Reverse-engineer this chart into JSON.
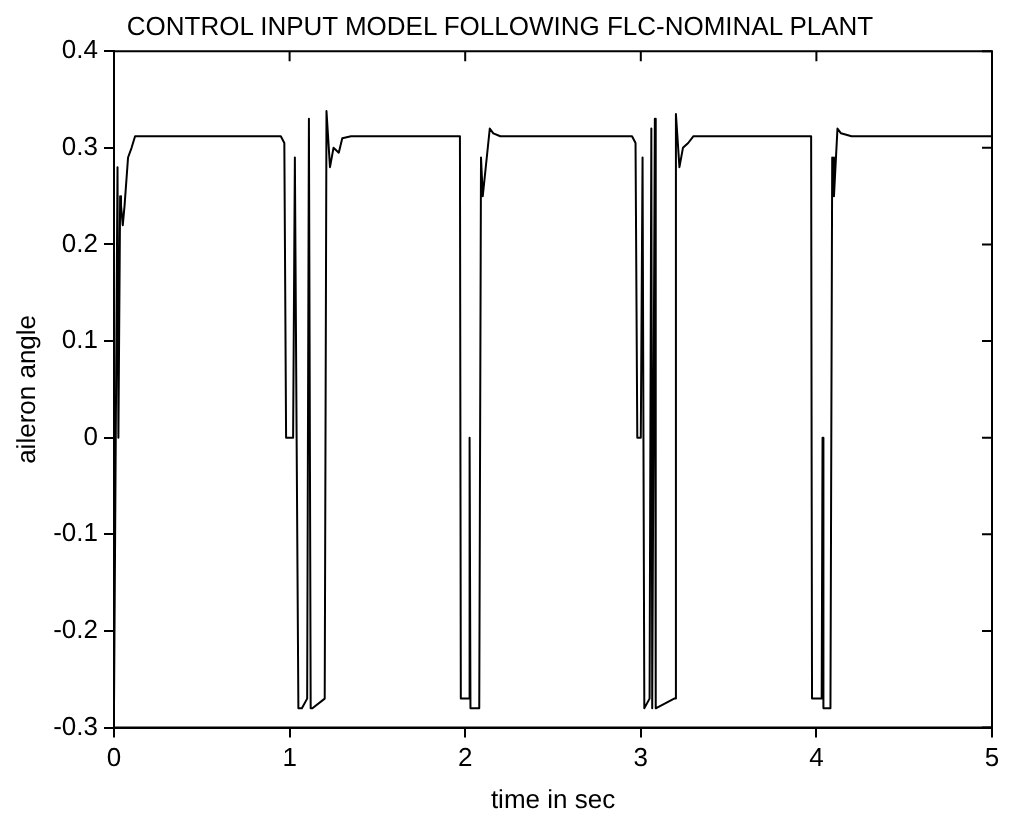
{
  "chart_data": {
    "type": "line",
    "title": "CONTROL INPUT MODEL FOLLOWING FLC-NOMINAL PLANT",
    "xlabel": "time in sec",
    "ylabel": "aileron angle",
    "x": [
      0,
      0.01,
      0.02,
      0.025,
      0.03,
      0.035,
      0.04,
      0.05,
      0.06,
      0.08,
      0.1,
      0.12,
      0.15,
      0.2,
      0.95,
      0.97,
      0.98,
      1.02,
      1.03,
      1.04,
      1.05,
      1.07,
      1.1,
      1.11,
      1.12,
      1.13,
      1.2,
      1.21,
      1.23,
      1.25,
      1.28,
      1.3,
      1.35,
      1.97,
      1.975,
      2.02,
      2.025,
      2.03,
      2.08,
      2.09,
      2.1,
      2.14,
      2.16,
      2.2,
      2.95,
      2.97,
      2.98,
      3.0,
      3.01,
      3.02,
      3.05,
      3.06,
      3.065,
      3.08,
      3.085,
      3.19,
      3.2,
      3.22,
      3.24,
      3.27,
      3.3,
      3.97,
      3.975,
      4.03,
      4.035,
      4.04,
      4.08,
      4.09,
      4.1,
      4.12,
      4.14,
      4.2,
      5
    ],
    "series": [
      {
        "color": "#000000",
        "values": [
          -0.28,
          -0.28,
          0.28,
          0,
          0,
          0.25,
          0.24,
          0.22,
          0.24,
          0.29,
          0.3,
          0.312,
          0.312,
          0.312,
          0.312,
          0.305,
          0,
          0,
          0.29,
          0,
          -0.28,
          -0.28,
          -0.27,
          0.33,
          -0.28,
          -0.28,
          -0.27,
          0.338,
          0.28,
          0.3,
          0.295,
          0.31,
          0.312,
          0.312,
          -0.27,
          -0.27,
          0,
          -0.28,
          -0.28,
          0.29,
          0.25,
          0.32,
          0.315,
          0.312,
          0.312,
          0.305,
          0,
          0,
          0.29,
          -0.28,
          -0.27,
          0.32,
          -0.28,
          0.33,
          -0.28,
          -0.27,
          0.335,
          0.28,
          0.3,
          0.305,
          0.312,
          0.312,
          -0.27,
          -0.27,
          0,
          -0.28,
          -0.28,
          0.29,
          0.25,
          0.32,
          0.315,
          0.312,
          0.312
        ]
      }
    ],
    "xlim": [
      0,
      5
    ],
    "xticks": [
      0,
      1,
      2,
      3,
      4,
      5
    ],
    "ylim": [
      -0.3,
      0.4
    ],
    "yticks": [
      -0.3,
      -0.2,
      -0.1,
      0,
      0.1,
      0.2,
      0.3,
      0.4
    ],
    "marker": "none",
    "line_style": "solid",
    "grid": false,
    "legend": false
  }
}
